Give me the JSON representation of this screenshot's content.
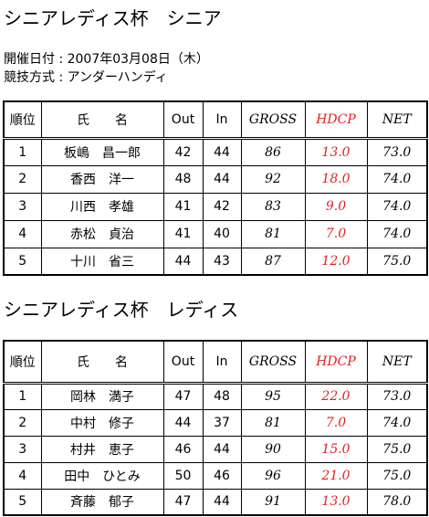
{
  "sections": [
    {
      "title": "シニアレディス杯　シニア",
      "info": [
        "開催日付 : 2007年03月08日（木）",
        "競技方式 : アンダーハンディ"
      ],
      "table": {
        "header": [
          "順位",
          "氏　　名",
          "Out",
          "In",
          "GROSS",
          "HDCP",
          "NET"
        ],
        "rows": [
          [
            "1",
            "板嶋　昌一郎",
            "42",
            "44",
            "86",
            "13.0",
            "73.0"
          ],
          [
            "2",
            "香西　洋一",
            "48",
            "44",
            "92",
            "18.0",
            "74.0"
          ],
          [
            "3",
            "川西　孝雄",
            "41",
            "42",
            "83",
            "9.0",
            "74.0"
          ],
          [
            "4",
            "赤松　貞治",
            "41",
            "40",
            "81",
            "7.0",
            "74.0"
          ],
          [
            "5",
            "十川　省三",
            "44",
            "43",
            "87",
            "12.0",
            "75.0"
          ]
        ]
      }
    },
    {
      "title": "シニアレディス杯　レディス",
      "table": {
        "header": [
          "順位",
          "氏　　名",
          "Out",
          "In",
          "GROSS",
          "HDCP",
          "NET"
        ],
        "rows": [
          [
            "1",
            "岡林　満子",
            "47",
            "48",
            "95",
            "22.0",
            "73.0"
          ],
          [
            "2",
            "中村　修子",
            "44",
            "37",
            "81",
            "7.0",
            "74.0"
          ],
          [
            "3",
            "村井　恵子",
            "46",
            "44",
            "90",
            "15.0",
            "75.0"
          ],
          [
            "4",
            "田中　ひとみ",
            "50",
            "46",
            "96",
            "21.0",
            "75.0"
          ],
          [
            "5",
            "斉藤　郁子",
            "47",
            "44",
            "91",
            "13.0",
            "78.0"
          ]
        ]
      }
    }
  ]
}
